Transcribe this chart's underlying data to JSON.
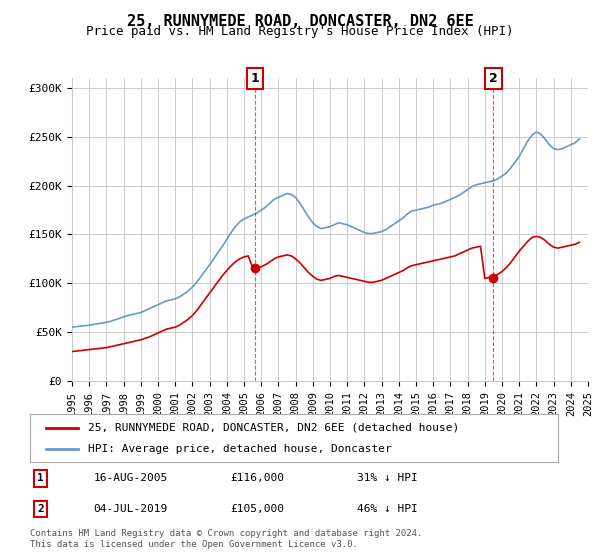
{
  "title": "25, RUNNYMEDE ROAD, DONCASTER, DN2 6EE",
  "subtitle": "Price paid vs. HM Land Registry's House Price Index (HPI)",
  "hpi_color": "#6699cc",
  "price_color": "#cc0000",
  "marker_color_red": "#cc0000",
  "bg_color": "#ffffff",
  "grid_color": "#cccccc",
  "ylim": [
    0,
    310000
  ],
  "yticks": [
    0,
    50000,
    100000,
    150000,
    200000,
    250000,
    300000
  ],
  "ytick_labels": [
    "£0",
    "£50K",
    "£100K",
    "£150K",
    "£200K",
    "£250K",
    "£300K"
  ],
  "legend_label_red": "25, RUNNYMEDE ROAD, DONCASTER, DN2 6EE (detached house)",
  "legend_label_blue": "HPI: Average price, detached house, Doncaster",
  "annotation1_label": "1",
  "annotation1_date": "16-AUG-2005",
  "annotation1_price": "£116,000",
  "annotation1_pct": "31% ↓ HPI",
  "annotation2_label": "2",
  "annotation2_date": "04-JUL-2019",
  "annotation2_price": "£105,000",
  "annotation2_pct": "46% ↓ HPI",
  "footnote": "Contains HM Land Registry data © Crown copyright and database right 2024.\nThis data is licensed under the Open Government Licence v3.0.",
  "sale1_x": 2005.62,
  "sale1_y": 116000,
  "sale2_x": 2019.5,
  "sale2_y": 105000,
  "hpi_x": [
    1995,
    1995.25,
    1995.5,
    1995.75,
    1996,
    1996.25,
    1996.5,
    1996.75,
    1997,
    1997.25,
    1997.5,
    1997.75,
    1998,
    1998.25,
    1998.5,
    1998.75,
    1999,
    1999.25,
    1999.5,
    1999.75,
    2000,
    2000.25,
    2000.5,
    2000.75,
    2001,
    2001.25,
    2001.5,
    2001.75,
    2002,
    2002.25,
    2002.5,
    2002.75,
    2003,
    2003.25,
    2003.5,
    2003.75,
    2004,
    2004.25,
    2004.5,
    2004.75,
    2005,
    2005.25,
    2005.5,
    2005.75,
    2006,
    2006.25,
    2006.5,
    2006.75,
    2007,
    2007.25,
    2007.5,
    2007.75,
    2008,
    2008.25,
    2008.5,
    2008.75,
    2009,
    2009.25,
    2009.5,
    2009.75,
    2010,
    2010.25,
    2010.5,
    2010.75,
    2011,
    2011.25,
    2011.5,
    2011.75,
    2012,
    2012.25,
    2012.5,
    2012.75,
    2013,
    2013.25,
    2013.5,
    2013.75,
    2014,
    2014.25,
    2014.5,
    2014.75,
    2015,
    2015.25,
    2015.5,
    2015.75,
    2016,
    2016.25,
    2016.5,
    2016.75,
    2017,
    2017.25,
    2017.5,
    2017.75,
    2018,
    2018.25,
    2018.5,
    2018.75,
    2019,
    2019.25,
    2019.5,
    2019.75,
    2020,
    2020.25,
    2020.5,
    2020.75,
    2021,
    2021.25,
    2021.5,
    2021.75,
    2022,
    2022.25,
    2022.5,
    2022.75,
    2023,
    2023.25,
    2023.5,
    2023.75,
    2024,
    2024.25,
    2024.5
  ],
  "hpi_y": [
    55000,
    55500,
    56000,
    56500,
    57000,
    57800,
    58500,
    59200,
    60000,
    61000,
    62500,
    64000,
    65500,
    67000,
    68000,
    69000,
    70000,
    72000,
    74000,
    76000,
    78000,
    80000,
    82000,
    83000,
    84000,
    86000,
    89000,
    92000,
    96000,
    101000,
    107000,
    113000,
    119000,
    125000,
    132000,
    138000,
    145000,
    152000,
    158000,
    163000,
    166000,
    168000,
    170000,
    172000,
    175000,
    178000,
    182000,
    186000,
    188000,
    190000,
    192000,
    191000,
    188000,
    182000,
    175000,
    168000,
    162000,
    158000,
    156000,
    157000,
    158000,
    160000,
    162000,
    161000,
    160000,
    158000,
    156000,
    154000,
    152000,
    151000,
    151000,
    152000,
    153000,
    155000,
    158000,
    161000,
    164000,
    167000,
    171000,
    174000,
    175000,
    176000,
    177000,
    178000,
    180000,
    181000,
    182000,
    184000,
    186000,
    188000,
    190000,
    193000,
    196000,
    199000,
    201000,
    202000,
    203000,
    204000,
    205000,
    207000,
    210000,
    213000,
    218000,
    224000,
    230000,
    238000,
    246000,
    252000,
    255000,
    253000,
    248000,
    242000,
    238000,
    237000,
    238000,
    240000,
    242000,
    244000,
    248000
  ],
  "price_x": [
    1995,
    1995.25,
    1995.5,
    1995.75,
    1996,
    1996.25,
    1996.5,
    1996.75,
    1997,
    1997.25,
    1997.5,
    1997.75,
    1998,
    1998.25,
    1998.5,
    1998.75,
    1999,
    1999.25,
    1999.5,
    1999.75,
    2000,
    2000.25,
    2000.5,
    2000.75,
    2001,
    2001.25,
    2001.5,
    2001.75,
    2002,
    2002.25,
    2002.5,
    2002.75,
    2003,
    2003.25,
    2003.5,
    2003.75,
    2004,
    2004.25,
    2004.5,
    2004.75,
    2005,
    2005.25,
    2005.5,
    2005.75,
    2006,
    2006.25,
    2006.5,
    2006.75,
    2007,
    2007.25,
    2007.5,
    2007.75,
    2008,
    2008.25,
    2008.5,
    2008.75,
    2009,
    2009.25,
    2009.5,
    2009.75,
    2010,
    2010.25,
    2010.5,
    2010.75,
    2011,
    2011.25,
    2011.5,
    2011.75,
    2012,
    2012.25,
    2012.5,
    2012.75,
    2013,
    2013.25,
    2013.5,
    2013.75,
    2014,
    2014.25,
    2014.5,
    2014.75,
    2015,
    2015.25,
    2015.5,
    2015.75,
    2016,
    2016.25,
    2016.5,
    2016.75,
    2017,
    2017.25,
    2017.5,
    2017.75,
    2018,
    2018.25,
    2018.5,
    2018.75,
    2019,
    2019.25,
    2019.5,
    2019.75,
    2020,
    2020.25,
    2020.5,
    2020.75,
    2021,
    2021.25,
    2021.5,
    2021.75,
    2022,
    2022.25,
    2022.5,
    2022.75,
    2023,
    2023.25,
    2023.5,
    2023.75,
    2024,
    2024.25,
    2024.5
  ],
  "price_y": [
    30000,
    30500,
    31000,
    31500,
    32000,
    32500,
    33000,
    33500,
    34000,
    35000,
    36000,
    37000,
    38000,
    39000,
    40000,
    41000,
    42000,
    43500,
    45000,
    47000,
    49000,
    51000,
    53000,
    54000,
    55000,
    57000,
    60000,
    63000,
    67000,
    72000,
    78000,
    84000,
    90000,
    96000,
    102000,
    108000,
    113000,
    118000,
    122000,
    125000,
    127000,
    128000,
    116000,
    116000,
    117000,
    119000,
    122000,
    125000,
    127000,
    128000,
    129000,
    128000,
    125000,
    121000,
    116000,
    111000,
    107000,
    104000,
    103000,
    104000,
    105000,
    107000,
    108000,
    107000,
    106000,
    105000,
    104000,
    103000,
    102000,
    101000,
    101000,
    102000,
    103000,
    105000,
    107000,
    109000,
    111000,
    113000,
    116000,
    118000,
    119000,
    120000,
    121000,
    122000,
    123000,
    124000,
    125000,
    126000,
    127000,
    128000,
    130000,
    132000,
    134000,
    136000,
    137000,
    138000,
    105000,
    106000,
    107000,
    109000,
    112000,
    116000,
    121000,
    127000,
    133000,
    138000,
    143000,
    147000,
    148000,
    147000,
    144000,
    140000,
    137000,
    136000,
    137000,
    138000,
    139000,
    140000,
    142000
  ],
  "xticks": [
    1995,
    1996,
    1997,
    1998,
    1999,
    2000,
    2001,
    2002,
    2003,
    2004,
    2005,
    2006,
    2007,
    2008,
    2009,
    2010,
    2011,
    2012,
    2013,
    2014,
    2015,
    2016,
    2017,
    2018,
    2019,
    2020,
    2021,
    2022,
    2023,
    2024,
    2025
  ]
}
